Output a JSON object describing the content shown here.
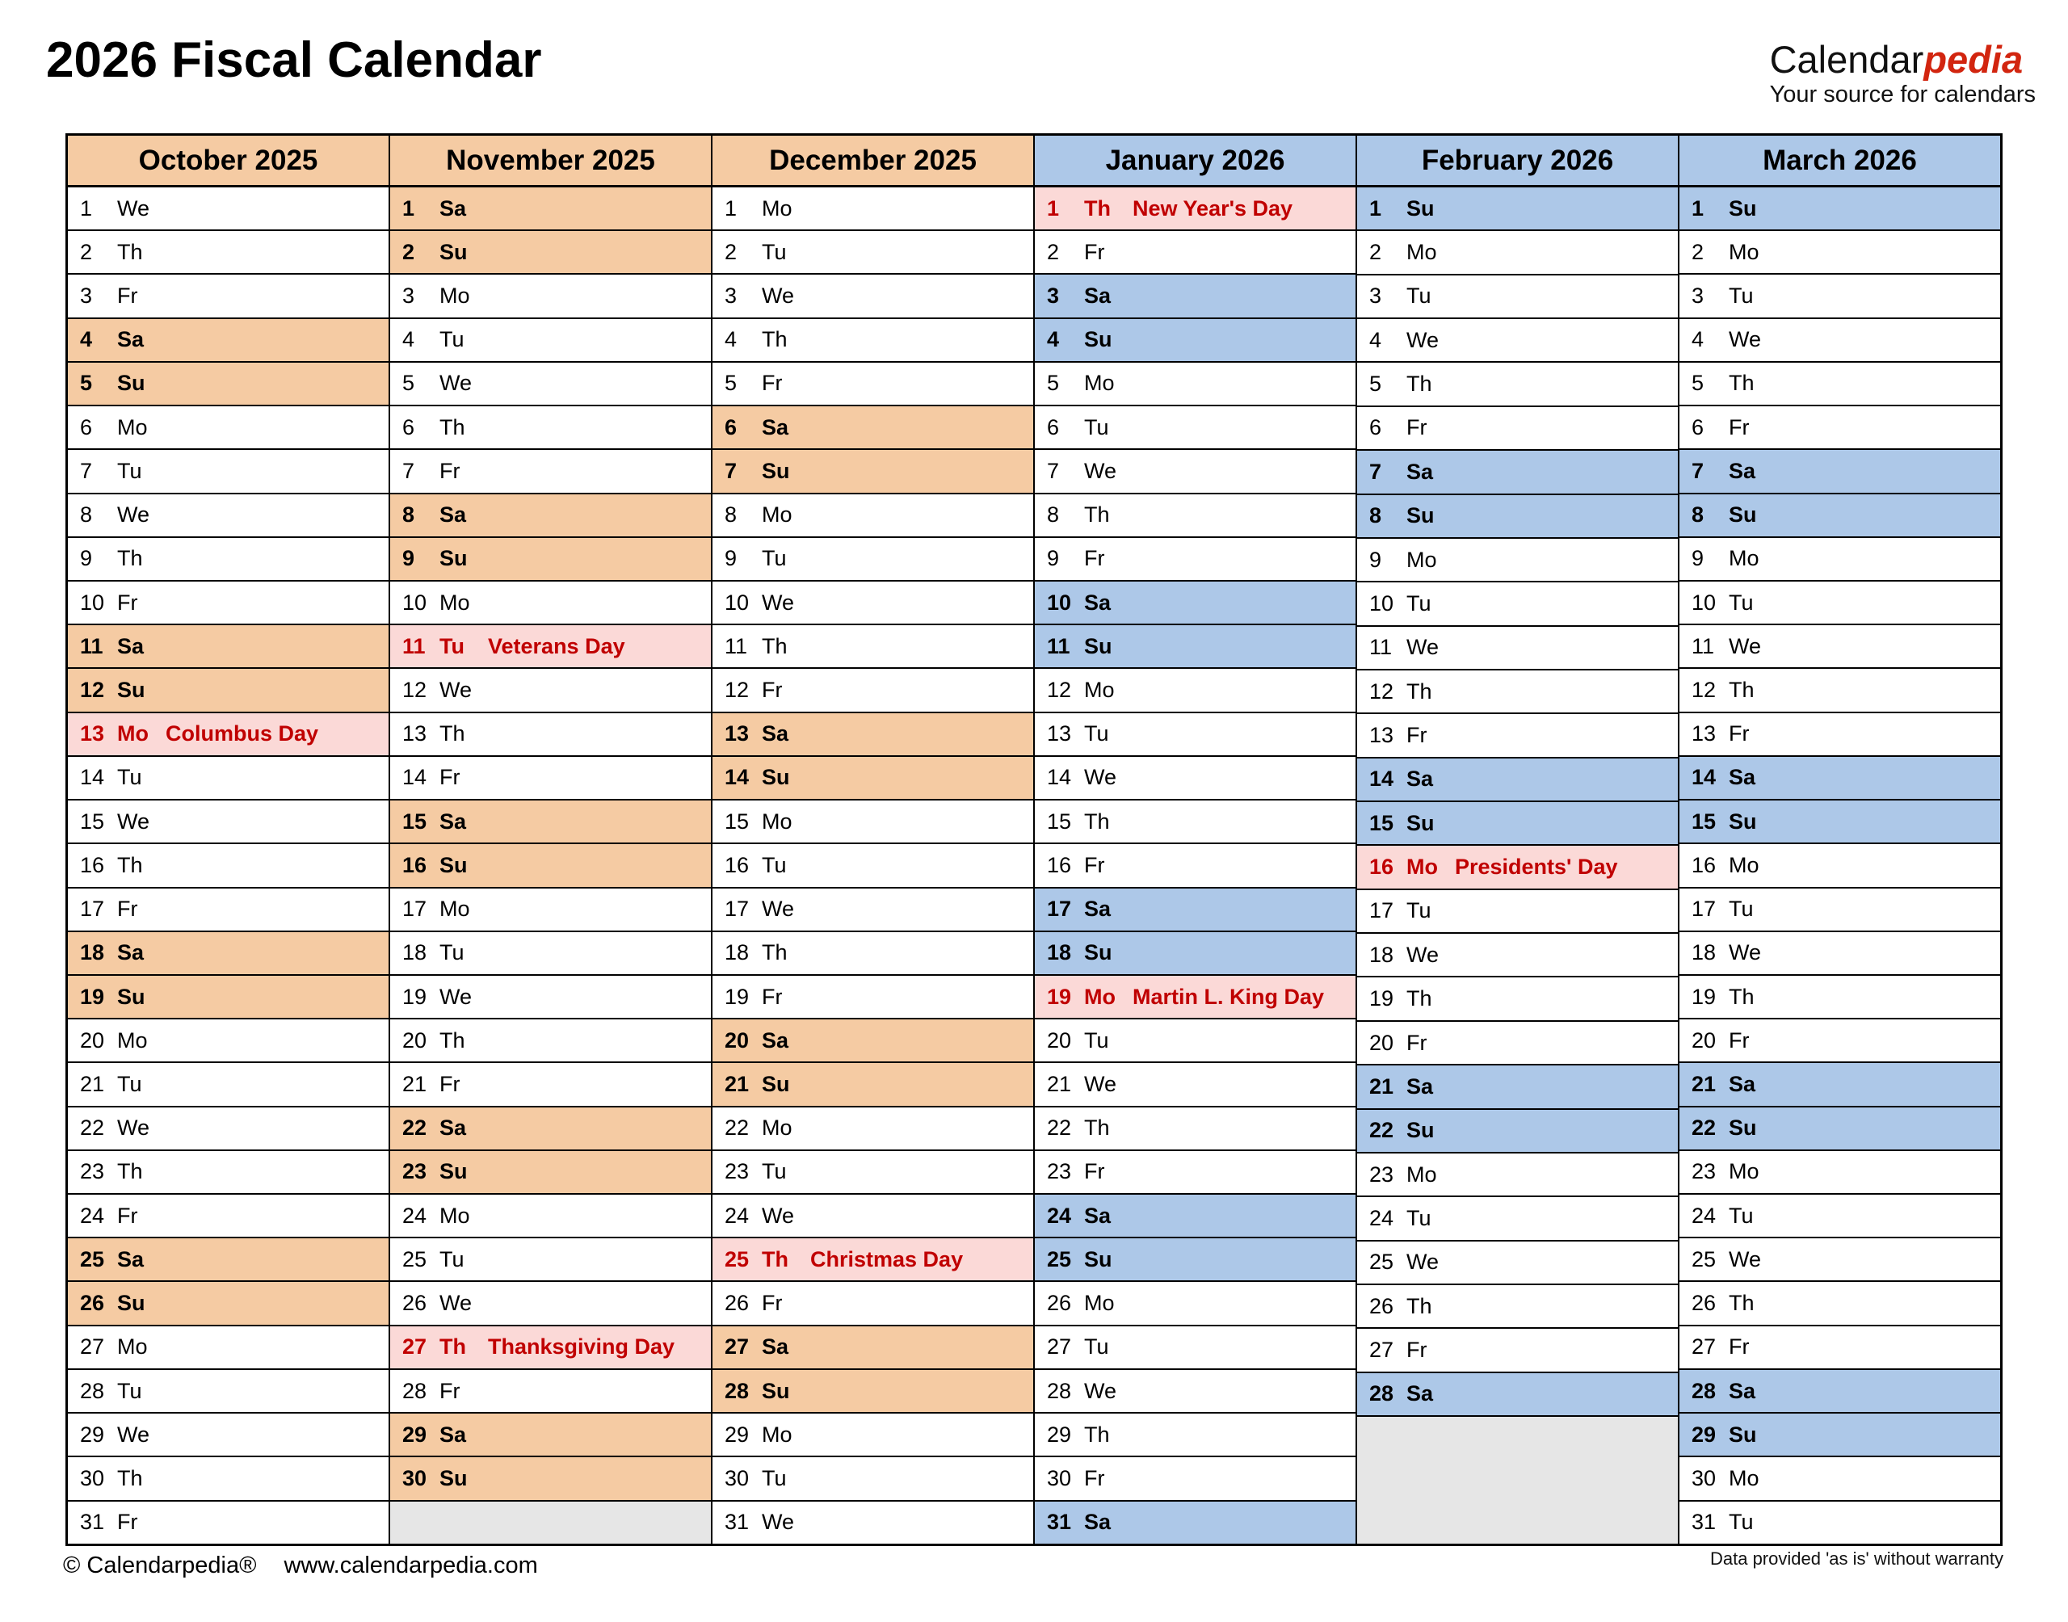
{
  "header": {
    "title": "2026 Fiscal Calendar",
    "logo_black": "Calendar",
    "logo_red": "pedia",
    "logo_tagline": "Your source for calendars"
  },
  "footer": {
    "copyright": "© Calendarpedia®",
    "url": "www.calendarpedia.com",
    "disclaimer": "Data provided 'as is' without warranty"
  },
  "colors": {
    "weekend_fall": "#F5CBA3",
    "weekend_spring": "#ADC8E8",
    "holiday_bg": "#FBD9D7",
    "holiday_text": "#C00000",
    "empty_cell": "#E6E6E6",
    "logo_red": "#D2250F",
    "border": "#000000"
  },
  "months": [
    {
      "name": "October 2025",
      "theme": "fall",
      "days": [
        {
          "d": 1,
          "w": "We"
        },
        {
          "d": 2,
          "w": "Th"
        },
        {
          "d": 3,
          "w": "Fr"
        },
        {
          "d": 4,
          "w": "Sa",
          "t": "w"
        },
        {
          "d": 5,
          "w": "Su",
          "t": "w"
        },
        {
          "d": 6,
          "w": "Mo"
        },
        {
          "d": 7,
          "w": "Tu"
        },
        {
          "d": 8,
          "w": "We"
        },
        {
          "d": 9,
          "w": "Th"
        },
        {
          "d": 10,
          "w": "Fr"
        },
        {
          "d": 11,
          "w": "Sa",
          "t": "w"
        },
        {
          "d": 12,
          "w": "Su",
          "t": "w"
        },
        {
          "d": 13,
          "w": "Mo",
          "t": "h",
          "hol": "Columbus Day"
        },
        {
          "d": 14,
          "w": "Tu"
        },
        {
          "d": 15,
          "w": "We"
        },
        {
          "d": 16,
          "w": "Th"
        },
        {
          "d": 17,
          "w": "Fr"
        },
        {
          "d": 18,
          "w": "Sa",
          "t": "w"
        },
        {
          "d": 19,
          "w": "Su",
          "t": "w"
        },
        {
          "d": 20,
          "w": "Mo"
        },
        {
          "d": 21,
          "w": "Tu"
        },
        {
          "d": 22,
          "w": "We"
        },
        {
          "d": 23,
          "w": "Th"
        },
        {
          "d": 24,
          "w": "Fr"
        },
        {
          "d": 25,
          "w": "Sa",
          "t": "w"
        },
        {
          "d": 26,
          "w": "Su",
          "t": "w"
        },
        {
          "d": 27,
          "w": "Mo"
        },
        {
          "d": 28,
          "w": "Tu"
        },
        {
          "d": 29,
          "w": "We"
        },
        {
          "d": 30,
          "w": "Th"
        },
        {
          "d": 31,
          "w": "Fr"
        }
      ]
    },
    {
      "name": "November 2025",
      "theme": "fall",
      "days": [
        {
          "d": 1,
          "w": "Sa",
          "t": "w"
        },
        {
          "d": 2,
          "w": "Su",
          "t": "w"
        },
        {
          "d": 3,
          "w": "Mo"
        },
        {
          "d": 4,
          "w": "Tu"
        },
        {
          "d": 5,
          "w": "We"
        },
        {
          "d": 6,
          "w": "Th"
        },
        {
          "d": 7,
          "w": "Fr"
        },
        {
          "d": 8,
          "w": "Sa",
          "t": "w"
        },
        {
          "d": 9,
          "w": "Su",
          "t": "w"
        },
        {
          "d": 10,
          "w": "Mo"
        },
        {
          "d": 11,
          "w": "Tu",
          "t": "h",
          "hol": "Veterans Day"
        },
        {
          "d": 12,
          "w": "We"
        },
        {
          "d": 13,
          "w": "Th"
        },
        {
          "d": 14,
          "w": "Fr"
        },
        {
          "d": 15,
          "w": "Sa",
          "t": "w"
        },
        {
          "d": 16,
          "w": "Su",
          "t": "w"
        },
        {
          "d": 17,
          "w": "Mo"
        },
        {
          "d": 18,
          "w": "Tu"
        },
        {
          "d": 19,
          "w": "We"
        },
        {
          "d": 20,
          "w": "Th"
        },
        {
          "d": 21,
          "w": "Fr"
        },
        {
          "d": 22,
          "w": "Sa",
          "t": "w"
        },
        {
          "d": 23,
          "w": "Su",
          "t": "w"
        },
        {
          "d": 24,
          "w": "Mo"
        },
        {
          "d": 25,
          "w": "Tu"
        },
        {
          "d": 26,
          "w": "We"
        },
        {
          "d": 27,
          "w": "Th",
          "t": "h",
          "hol": "Thanksgiving Day"
        },
        {
          "d": 28,
          "w": "Fr"
        },
        {
          "d": 29,
          "w": "Sa",
          "t": "w"
        },
        {
          "d": 30,
          "w": "Su",
          "t": "w"
        }
      ]
    },
    {
      "name": "December 2025",
      "theme": "fall",
      "days": [
        {
          "d": 1,
          "w": "Mo"
        },
        {
          "d": 2,
          "w": "Tu"
        },
        {
          "d": 3,
          "w": "We"
        },
        {
          "d": 4,
          "w": "Th"
        },
        {
          "d": 5,
          "w": "Fr"
        },
        {
          "d": 6,
          "w": "Sa",
          "t": "w"
        },
        {
          "d": 7,
          "w": "Su",
          "t": "w"
        },
        {
          "d": 8,
          "w": "Mo"
        },
        {
          "d": 9,
          "w": "Tu"
        },
        {
          "d": 10,
          "w": "We"
        },
        {
          "d": 11,
          "w": "Th"
        },
        {
          "d": 12,
          "w": "Fr"
        },
        {
          "d": 13,
          "w": "Sa",
          "t": "w"
        },
        {
          "d": 14,
          "w": "Su",
          "t": "w"
        },
        {
          "d": 15,
          "w": "Mo"
        },
        {
          "d": 16,
          "w": "Tu"
        },
        {
          "d": 17,
          "w": "We"
        },
        {
          "d": 18,
          "w": "Th"
        },
        {
          "d": 19,
          "w": "Fr"
        },
        {
          "d": 20,
          "w": "Sa",
          "t": "w"
        },
        {
          "d": 21,
          "w": "Su",
          "t": "w"
        },
        {
          "d": 22,
          "w": "Mo"
        },
        {
          "d": 23,
          "w": "Tu"
        },
        {
          "d": 24,
          "w": "We"
        },
        {
          "d": 25,
          "w": "Th",
          "t": "h",
          "hol": "Christmas Day"
        },
        {
          "d": 26,
          "w": "Fr"
        },
        {
          "d": 27,
          "w": "Sa",
          "t": "w"
        },
        {
          "d": 28,
          "w": "Su",
          "t": "w"
        },
        {
          "d": 29,
          "w": "Mo"
        },
        {
          "d": 30,
          "w": "Tu"
        },
        {
          "d": 31,
          "w": "We"
        }
      ]
    },
    {
      "name": "January 2026",
      "theme": "spring",
      "days": [
        {
          "d": 1,
          "w": "Th",
          "t": "h",
          "hol": "New Year's Day"
        },
        {
          "d": 2,
          "w": "Fr"
        },
        {
          "d": 3,
          "w": "Sa",
          "t": "w"
        },
        {
          "d": 4,
          "w": "Su",
          "t": "w"
        },
        {
          "d": 5,
          "w": "Mo"
        },
        {
          "d": 6,
          "w": "Tu"
        },
        {
          "d": 7,
          "w": "We"
        },
        {
          "d": 8,
          "w": "Th"
        },
        {
          "d": 9,
          "w": "Fr"
        },
        {
          "d": 10,
          "w": "Sa",
          "t": "w"
        },
        {
          "d": 11,
          "w": "Su",
          "t": "w"
        },
        {
          "d": 12,
          "w": "Mo"
        },
        {
          "d": 13,
          "w": "Tu"
        },
        {
          "d": 14,
          "w": "We"
        },
        {
          "d": 15,
          "w": "Th"
        },
        {
          "d": 16,
          "w": "Fr"
        },
        {
          "d": 17,
          "w": "Sa",
          "t": "w"
        },
        {
          "d": 18,
          "w": "Su",
          "t": "w"
        },
        {
          "d": 19,
          "w": "Mo",
          "t": "h",
          "hol": "Martin L. King Day"
        },
        {
          "d": 20,
          "w": "Tu"
        },
        {
          "d": 21,
          "w": "We"
        },
        {
          "d": 22,
          "w": "Th"
        },
        {
          "d": 23,
          "w": "Fr"
        },
        {
          "d": 24,
          "w": "Sa",
          "t": "w"
        },
        {
          "d": 25,
          "w": "Su",
          "t": "w"
        },
        {
          "d": 26,
          "w": "Mo"
        },
        {
          "d": 27,
          "w": "Tu"
        },
        {
          "d": 28,
          "w": "We"
        },
        {
          "d": 29,
          "w": "Th"
        },
        {
          "d": 30,
          "w": "Fr"
        },
        {
          "d": 31,
          "w": "Sa",
          "t": "w"
        }
      ]
    },
    {
      "name": "February 2026",
      "theme": "spring",
      "days": [
        {
          "d": 1,
          "w": "Su",
          "t": "w"
        },
        {
          "d": 2,
          "w": "Mo"
        },
        {
          "d": 3,
          "w": "Tu"
        },
        {
          "d": 4,
          "w": "We"
        },
        {
          "d": 5,
          "w": "Th"
        },
        {
          "d": 6,
          "w": "Fr"
        },
        {
          "d": 7,
          "w": "Sa",
          "t": "w"
        },
        {
          "d": 8,
          "w": "Su",
          "t": "w"
        },
        {
          "d": 9,
          "w": "Mo"
        },
        {
          "d": 10,
          "w": "Tu"
        },
        {
          "d": 11,
          "w": "We"
        },
        {
          "d": 12,
          "w": "Th"
        },
        {
          "d": 13,
          "w": "Fr"
        },
        {
          "d": 14,
          "w": "Sa",
          "t": "w"
        },
        {
          "d": 15,
          "w": "Su",
          "t": "w"
        },
        {
          "d": 16,
          "w": "Mo",
          "t": "h",
          "hol": "Presidents' Day"
        },
        {
          "d": 17,
          "w": "Tu"
        },
        {
          "d": 18,
          "w": "We"
        },
        {
          "d": 19,
          "w": "Th"
        },
        {
          "d": 20,
          "w": "Fr"
        },
        {
          "d": 21,
          "w": "Sa",
          "t": "w"
        },
        {
          "d": 22,
          "w": "Su",
          "t": "w"
        },
        {
          "d": 23,
          "w": "Mo"
        },
        {
          "d": 24,
          "w": "Tu"
        },
        {
          "d": 25,
          "w": "We"
        },
        {
          "d": 26,
          "w": "Th"
        },
        {
          "d": 27,
          "w": "Fr"
        },
        {
          "d": 28,
          "w": "Sa",
          "t": "w"
        }
      ]
    },
    {
      "name": "March 2026",
      "theme": "spring",
      "days": [
        {
          "d": 1,
          "w": "Su",
          "t": "w"
        },
        {
          "d": 2,
          "w": "Mo"
        },
        {
          "d": 3,
          "w": "Tu"
        },
        {
          "d": 4,
          "w": "We"
        },
        {
          "d": 5,
          "w": "Th"
        },
        {
          "d": 6,
          "w": "Fr"
        },
        {
          "d": 7,
          "w": "Sa",
          "t": "w"
        },
        {
          "d": 8,
          "w": "Su",
          "t": "w"
        },
        {
          "d": 9,
          "w": "Mo"
        },
        {
          "d": 10,
          "w": "Tu"
        },
        {
          "d": 11,
          "w": "We"
        },
        {
          "d": 12,
          "w": "Th"
        },
        {
          "d": 13,
          "w": "Fr"
        },
        {
          "d": 14,
          "w": "Sa",
          "t": "w"
        },
        {
          "d": 15,
          "w": "Su",
          "t": "w"
        },
        {
          "d": 16,
          "w": "Mo"
        },
        {
          "d": 17,
          "w": "Tu"
        },
        {
          "d": 18,
          "w": "We"
        },
        {
          "d": 19,
          "w": "Th"
        },
        {
          "d": 20,
          "w": "Fr"
        },
        {
          "d": 21,
          "w": "Sa",
          "t": "w"
        },
        {
          "d": 22,
          "w": "Su",
          "t": "w"
        },
        {
          "d": 23,
          "w": "Mo"
        },
        {
          "d": 24,
          "w": "Tu"
        },
        {
          "d": 25,
          "w": "We"
        },
        {
          "d": 26,
          "w": "Th"
        },
        {
          "d": 27,
          "w": "Fr"
        },
        {
          "d": 28,
          "w": "Sa",
          "t": "w"
        },
        {
          "d": 29,
          "w": "Su",
          "t": "w"
        },
        {
          "d": 30,
          "w": "Mo"
        },
        {
          "d": 31,
          "w": "Tu"
        }
      ]
    }
  ]
}
